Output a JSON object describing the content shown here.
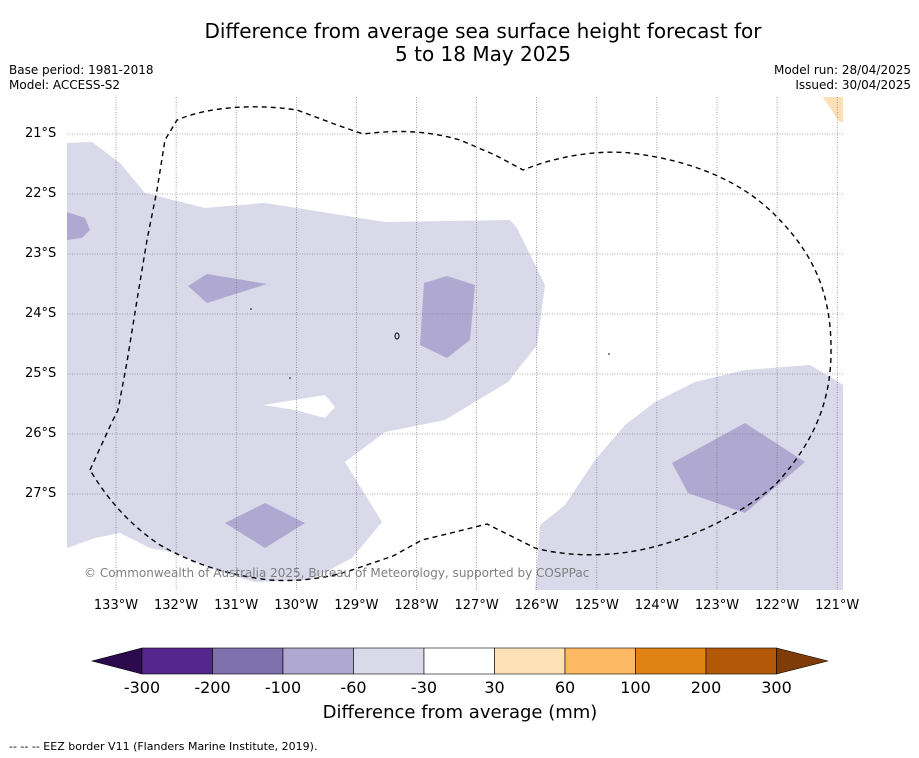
{
  "title_line1": "Difference from average sea surface height forecast for",
  "title_line2": "5 to 18 May 2025",
  "base_period": "Base period: 1981-2018",
  "model": "Model: ACCESS-S2",
  "model_run": "Model run: 28/04/2025",
  "issued": "Issued: 30/04/2025",
  "credit": "© Commonwealth of Australia 2025, Bureau of Meteorology, supported by COSPPac",
  "lat_labels": [
    "21°S",
    "22°S",
    "23°S",
    "24°S",
    "25°S",
    "26°S",
    "27°S"
  ],
  "lon_labels": [
    "133°W",
    "132°W",
    "131°W",
    "130°W",
    "129°W",
    "128°W",
    "127°W",
    "126°W",
    "125°W",
    "124°W",
    "123°W",
    "122°W",
    "121°W"
  ],
  "colorbar": {
    "title": "Difference from average (mm)",
    "tick_labels": [
      "-300",
      "-200",
      "-100",
      "-60",
      "-30",
      "30",
      "60",
      "100",
      "200",
      "300"
    ],
    "colors": [
      "#2d0a4e",
      "#54278f",
      "#7d70ac",
      "#afa8d1",
      "#d9d9ea",
      "#ffffff",
      "#fee0b6",
      "#fdb863",
      "#e08214",
      "#b35806",
      "#7f3b08"
    ]
  },
  "footer": "-- -- -- EEZ border V11 (Flanders Marine Institute, 2019)."
}
